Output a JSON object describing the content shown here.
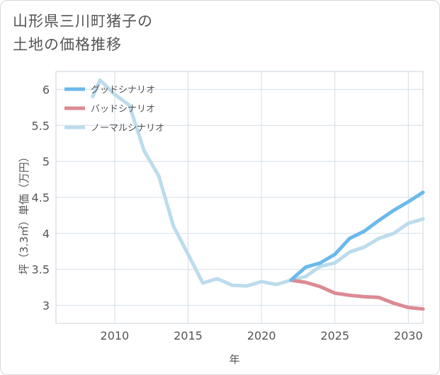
{
  "header": {
    "title_line1": "山形県三川町猪子の",
    "title_line2": "土地の価格推移"
  },
  "chart_data": {
    "type": "line",
    "xlabel": "年",
    "ylabel": "坪（3.3㎡）単価（万円）",
    "xlim": [
      2006,
      2031
    ],
    "ylim": [
      2.75,
      6.25
    ],
    "x_ticks": [
      2010,
      2015,
      2020,
      2025,
      2030
    ],
    "y_ticks": [
      3,
      3.5,
      4,
      4.5,
      5,
      5.5,
      6
    ],
    "x_tick_labels": [
      "2010",
      "2015",
      "2020",
      "2025",
      "2030"
    ],
    "y_tick_labels": [
      "3",
      "3.5",
      "4",
      "4.5",
      "5",
      "5.5",
      "6"
    ],
    "grid": true,
    "legend_position": "top-left",
    "series": [
      {
        "name": "グッドシナリオ",
        "color": "#6cb9ec",
        "x": [
          2022,
          2023,
          2024,
          2025,
          2026,
          2027,
          2028,
          2029,
          2030,
          2031
        ],
        "y": [
          3.35,
          3.53,
          3.59,
          3.71,
          3.93,
          4.03,
          4.18,
          4.32,
          4.44,
          4.57
        ]
      },
      {
        "name": "バッドシナリオ",
        "color": "#dc8a92",
        "x": [
          2022,
          2023,
          2024,
          2025,
          2026,
          2027,
          2028,
          2029,
          2030,
          2031
        ],
        "y": [
          3.35,
          3.32,
          3.26,
          3.17,
          3.14,
          3.12,
          3.11,
          3.03,
          2.97,
          2.95
        ]
      },
      {
        "name": "ノーマルシナリオ",
        "color": "#bcdcec",
        "x": [
          2008.5,
          2009,
          2010,
          2011,
          2012,
          2013,
          2014,
          2015,
          2016,
          2017,
          2018,
          2019,
          2020,
          2021,
          2022,
          2023,
          2024,
          2025,
          2026,
          2027,
          2028,
          2029,
          2030,
          2031
        ],
        "y": [
          5.9,
          6.13,
          5.93,
          5.78,
          5.15,
          4.8,
          4.1,
          3.71,
          3.31,
          3.37,
          3.28,
          3.27,
          3.33,
          3.29,
          3.35,
          3.4,
          3.54,
          3.59,
          3.74,
          3.81,
          3.93,
          4.0,
          4.14,
          4.2
        ]
      }
    ]
  }
}
